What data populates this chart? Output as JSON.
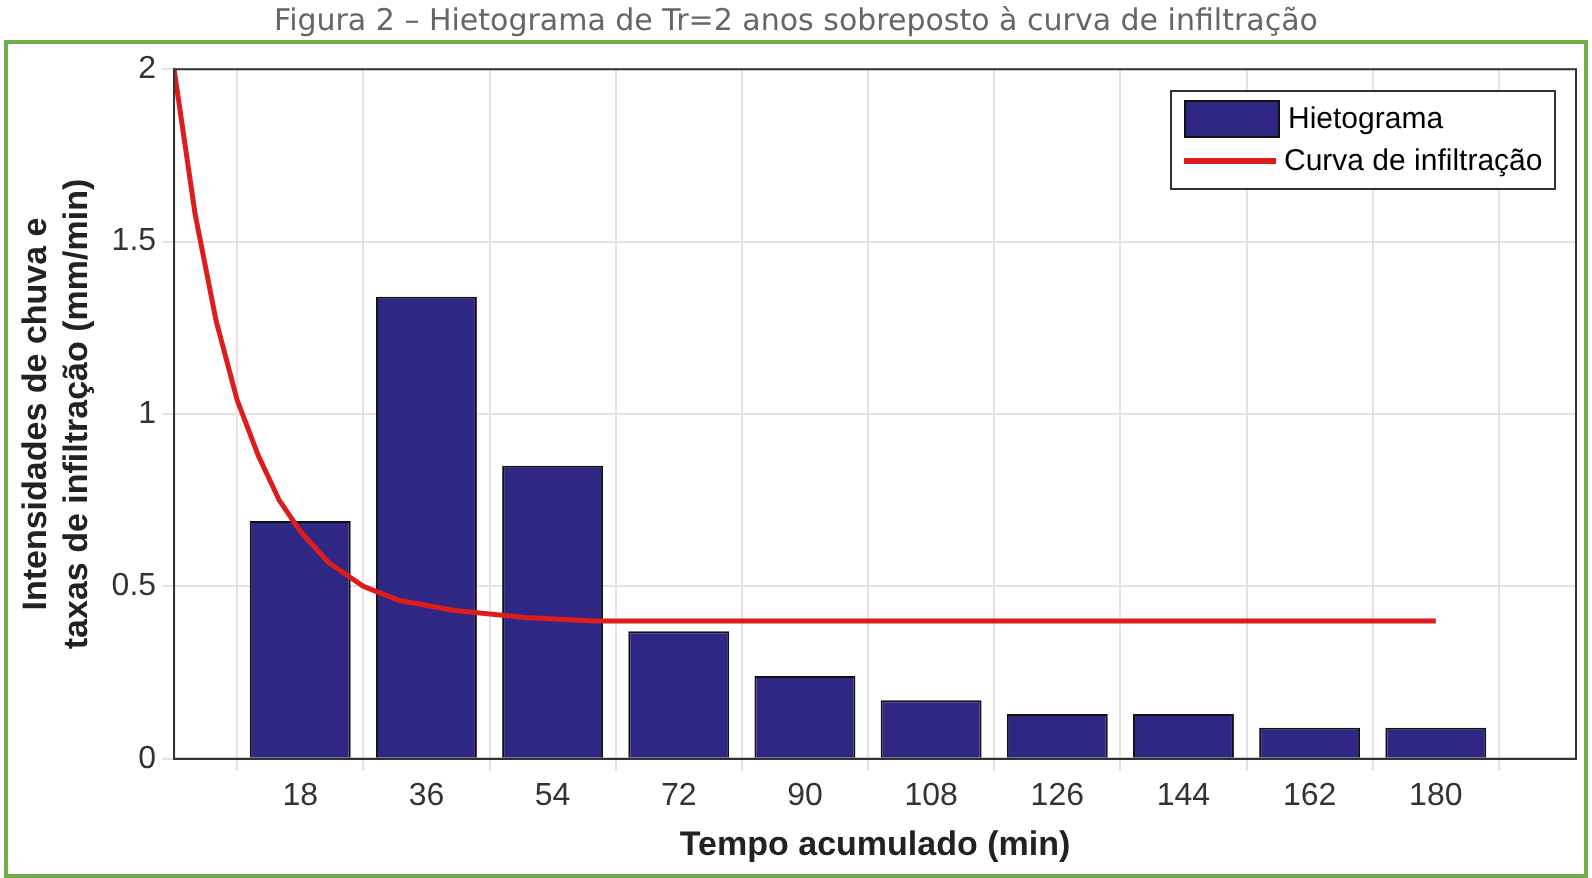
{
  "chart_data": {
    "type": "bar",
    "title": "Figura 2 – Hietograma de Tr=2 anos sobreposto à curva de infiltração",
    "xlabel": "Tempo acumulado (min)",
    "ylabel": "Intensidades de chuva e\ntaxas de infiltração (mm/min)",
    "x": [
      18,
      36,
      54,
      72,
      90,
      108,
      126,
      144,
      162,
      180
    ],
    "series": [
      {
        "name": "Hietograma",
        "color": "#2e2884",
        "values": [
          0.69,
          1.34,
          0.85,
          0.37,
          0.24,
          0.17,
          0.13,
          0.13,
          0.09,
          0.09
        ]
      },
      {
        "name": "Curva de infiltração",
        "type": "line",
        "color": "#dd1c1c",
        "x": [
          0,
          3,
          6,
          9,
          12,
          15,
          18,
          22,
          27,
          32,
          40,
          50,
          60,
          90,
          120,
          150,
          180
        ],
        "values": [
          2,
          1.58,
          1.27,
          1.04,
          0.88,
          0.75,
          0.66,
          0.57,
          0.5,
          0.46,
          0.43,
          0.41,
          0.4,
          0.4,
          0.4,
          0.4,
          0.4
        ]
      }
    ],
    "xlim": [
      0,
      200
    ],
    "xticks": [
      18,
      36,
      54,
      72,
      90,
      108,
      126,
      144,
      162,
      180
    ],
    "ylim": [
      0,
      2
    ],
    "yticks": [
      0,
      0.5,
      1,
      1.5,
      2
    ],
    "grid": true,
    "legend": "top right",
    "marker": "none",
    "line_style": "solid"
  }
}
